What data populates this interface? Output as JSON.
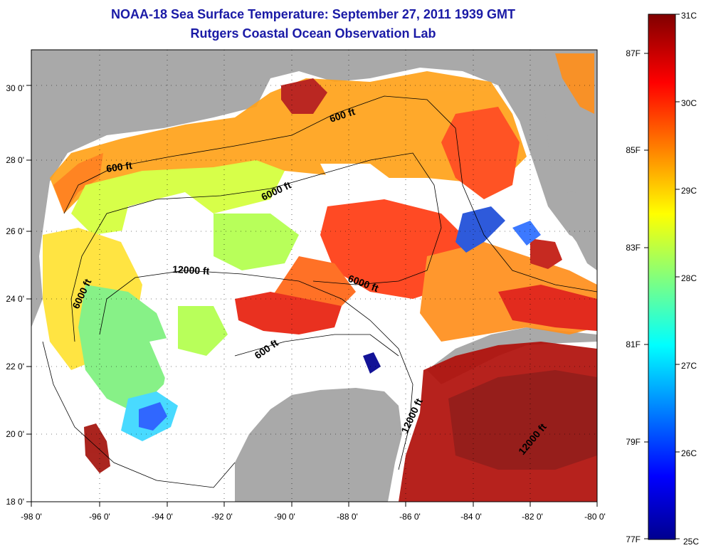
{
  "title": "NOAA-18 Sea Surface Temperature:  September 27, 2011 1939 GMT",
  "subtitle": "Rutgers Coastal Ocean Observation Lab",
  "lon_ticks": [
    "-98 0'",
    "-96 0'",
    "-94 0'",
    "-92 0'",
    "-90 0'",
    "-88 0'",
    "-86 0'",
    "-84 0'",
    "-82 0'",
    "-80 0'"
  ],
  "lat_ticks": [
    "30 0'",
    "28 0'",
    "26 0'",
    "24 0'",
    "22 0'",
    "20 0'",
    "18 0'"
  ],
  "contour_labels": [
    "600 ft",
    "600 ft",
    "6000 ft",
    "12000 ft",
    "6000 ft",
    "6000 ft",
    "600 ft",
    "12000 ft",
    "12000 ft"
  ],
  "colorbar": {
    "celsius": [
      "31C",
      "30C",
      "29C",
      "28C",
      "27C",
      "26C",
      "25C"
    ],
    "fahrenheit": [
      "87F",
      "85F",
      "83F",
      "81F",
      "79F",
      "77F"
    ]
  },
  "colors": {
    "land": "#a9a9a9",
    "title": "#1a1aa6",
    "cold": "#00008f",
    "warm": "#800000"
  }
}
